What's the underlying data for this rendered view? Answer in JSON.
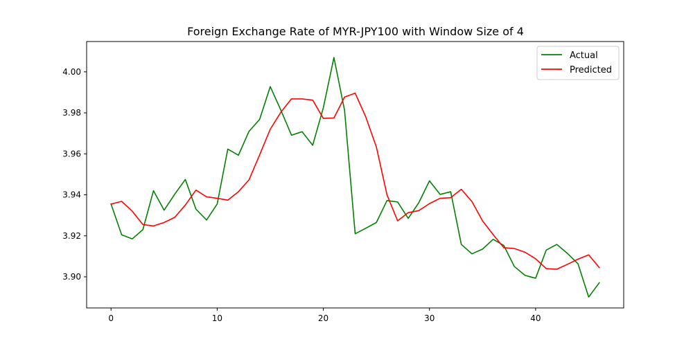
{
  "chart_data": {
    "type": "line",
    "title": "Foreign Exchange Rate of MYR-JPY100 with Window Size of 4",
    "xlabel": "",
    "ylabel": "",
    "xlim": [
      -2.3,
      48.3
    ],
    "ylim": [
      3.8848,
      4.0148
    ],
    "xticks": [
      0,
      10,
      20,
      30,
      40
    ],
    "yticks": [
      3.9,
      3.92,
      3.94,
      3.96,
      3.98,
      4.0
    ],
    "ytick_labels": [
      "3.90",
      "3.92",
      "3.94",
      "3.96",
      "3.98",
      "4.00"
    ],
    "grid": false,
    "legend_position": "top-right",
    "x": [
      0,
      1,
      2,
      3,
      4,
      5,
      6,
      7,
      8,
      9,
      10,
      11,
      12,
      13,
      14,
      15,
      16,
      17,
      18,
      19,
      20,
      21,
      22,
      23,
      24,
      25,
      26,
      27,
      28,
      29,
      30,
      31,
      32,
      33,
      34,
      35,
      36,
      37,
      38,
      39,
      40,
      41,
      42,
      43,
      44,
      45,
      46
    ],
    "series": [
      {
        "name": "Actual",
        "color": "#008000",
        "values": [
          3.9355,
          3.9205,
          3.9185,
          3.923,
          3.942,
          3.9325,
          3.9403,
          3.9475,
          3.933,
          3.9277,
          3.9355,
          3.9623,
          3.9593,
          3.971,
          3.9768,
          3.9928,
          3.9813,
          3.9691,
          3.9708,
          3.9642,
          3.9825,
          4.007,
          3.9813,
          3.921,
          3.9237,
          3.9265,
          3.9372,
          3.9365,
          3.9285,
          3.9362,
          3.9468,
          3.9402,
          3.9415,
          3.9158,
          3.9112,
          3.9135,
          3.9183,
          3.9153,
          3.905,
          3.9007,
          3.8993,
          3.913,
          3.9158,
          3.9114,
          3.9063,
          3.8901,
          3.8971
        ]
      },
      {
        "name": "Predicted",
        "color": "#ff0000",
        "values": [
          3.9355,
          3.9368,
          3.932,
          3.9255,
          3.9248,
          3.9265,
          3.929,
          3.935,
          3.9423,
          3.939,
          3.9383,
          3.9374,
          3.9415,
          3.9473,
          3.9595,
          3.972,
          3.9803,
          3.9868,
          3.9868,
          3.9862,
          3.9773,
          3.9775,
          3.9877,
          3.9896,
          3.978,
          3.9633,
          3.94,
          3.9273,
          3.9313,
          3.9323,
          3.9357,
          3.9383,
          3.9386,
          3.9427,
          3.9367,
          3.9273,
          3.9206,
          3.9142,
          3.9138,
          3.912,
          3.9088,
          3.904,
          3.9037,
          3.9061,
          3.9086,
          3.9107,
          3.9045
        ]
      }
    ]
  }
}
